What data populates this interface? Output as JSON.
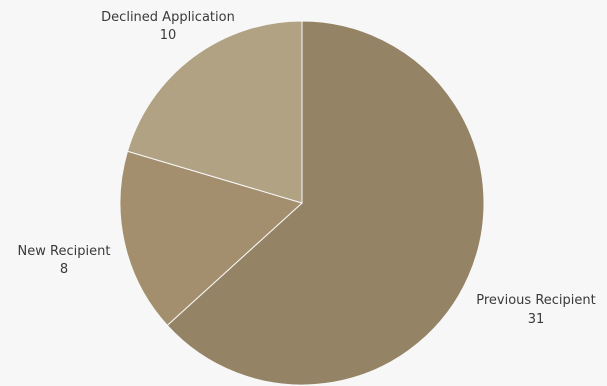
{
  "chart_data": {
    "type": "pie",
    "categories": [
      "Previous Recipient",
      "New Recipient",
      "Declined Application"
    ],
    "values": [
      31,
      8,
      10
    ],
    "colors": [
      "#948465",
      "#a38f6e",
      "#b0a282"
    ],
    "start_angle_deg": 0,
    "direction": "clockwise"
  }
}
